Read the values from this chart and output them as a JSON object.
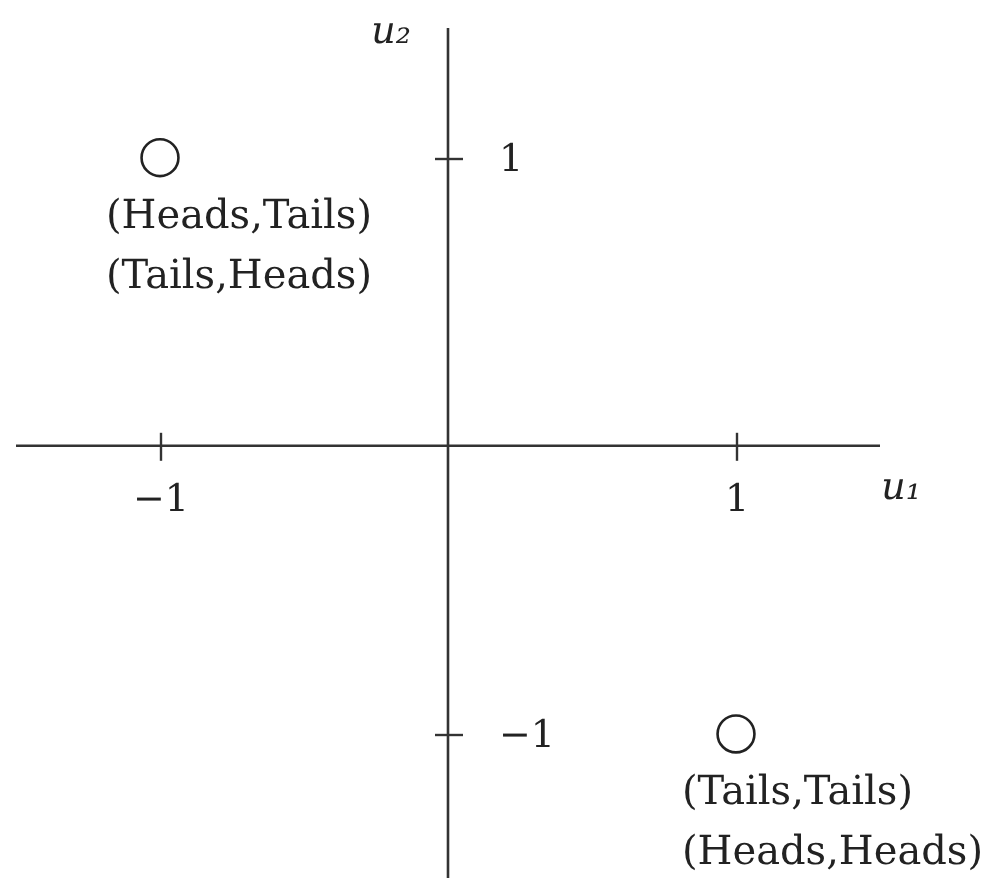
{
  "chart_data": {
    "type": "scatter",
    "x": [
      -1,
      1
    ],
    "values": [
      1,
      -1
    ],
    "color": "#222222",
    "marker": "circle",
    "xlabel": "u₁",
    "ylabel": "u₂",
    "xlim": [
      -1.5,
      1.5
    ],
    "ylim": [
      -1.5,
      1.45
    ],
    "xticks": [
      -1,
      1
    ],
    "yticks": [
      -1,
      1
    ],
    "annotations": [
      {
        "text": "(Heads,Tails)\n(Tails,Heads)",
        "x": -1,
        "y": 1
      },
      {
        "text": "(Tails,Tails)\n(Heads,Heads)",
        "x": 1,
        "y": -1
      }
    ]
  }
}
